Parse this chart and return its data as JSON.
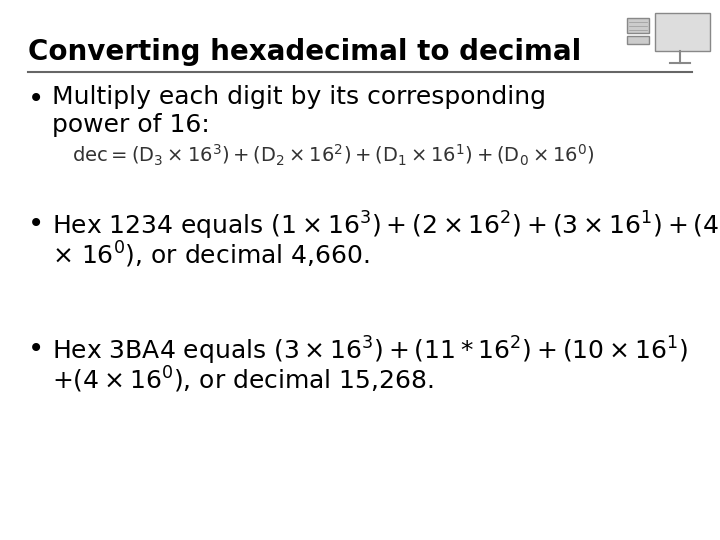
{
  "bg_color": "#ffffff",
  "title": "Converting hexadecimal to decimal",
  "title_fontsize": 20,
  "title_color": "#000000",
  "line_color": "#666666",
  "bullet_fontsize": 18,
  "formula_fontsize": 14,
  "text_color": "#000000",
  "formula_color": "#333333"
}
